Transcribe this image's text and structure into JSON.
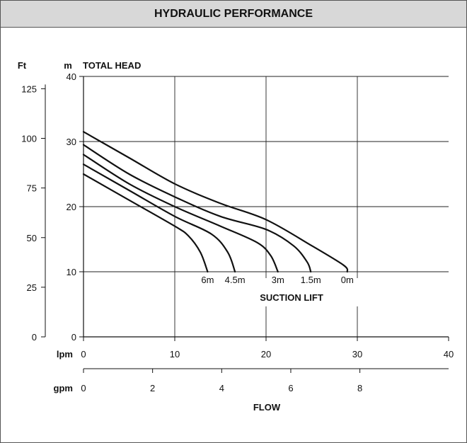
{
  "header": {
    "title": "HYDRAULIC PERFORMANCE"
  },
  "chart_data": {
    "type": "line",
    "title": "HYDRAULIC PERFORMANCE",
    "ylabel": "TOTAL HEAD",
    "xlabel": "FLOW",
    "y_unit_primary": "m",
    "y_unit_secondary": "Ft",
    "x_unit_primary": "lpm",
    "x_unit_secondary": "gpm",
    "xlim": [
      0,
      40
    ],
    "ylim": [
      0,
      40
    ],
    "x_ticks": [
      0,
      10,
      20,
      30,
      40
    ],
    "y_ticks": [
      0,
      10,
      20,
      30,
      40
    ],
    "ft_ticks": [
      0,
      25,
      50,
      75,
      100,
      125
    ],
    "ft_max": 131.2,
    "gpm_ticks": [
      0,
      2,
      4,
      6,
      8
    ],
    "gpm_per_lpm": 0.2642,
    "grid": true,
    "curve_group_label": "SUCTION LIFT",
    "series": [
      {
        "name": "0m",
        "x": [
          0,
          5,
          10,
          15,
          20,
          25,
          28.5,
          28.9
        ],
        "y": [
          31.5,
          27.5,
          23.5,
          20.5,
          18.0,
          14.0,
          11.0,
          10.0
        ]
      },
      {
        "name": "1.5m",
        "x": [
          0,
          5,
          10,
          15,
          20,
          23,
          24.5,
          24.9
        ],
        "y": [
          29.5,
          25.0,
          21.5,
          18.5,
          16.5,
          14.0,
          11.5,
          10.0
        ]
      },
      {
        "name": "3m",
        "x": [
          0,
          5,
          10,
          15,
          19,
          20.5,
          21.3
        ],
        "y": [
          28.0,
          23.5,
          20.0,
          17.0,
          14.5,
          12.5,
          10.0
        ]
      },
      {
        "name": "4.5m",
        "x": [
          0,
          5,
          10,
          14,
          15.8,
          16.6
        ],
        "y": [
          26.5,
          22.5,
          18.5,
          15.8,
          13.0,
          10.0
        ]
      },
      {
        "name": "6m",
        "x": [
          0,
          5,
          10,
          11.5,
          12.8,
          13.6
        ],
        "y": [
          25.0,
          21.0,
          17.0,
          15.5,
          13.0,
          10.0
        ]
      }
    ]
  }
}
